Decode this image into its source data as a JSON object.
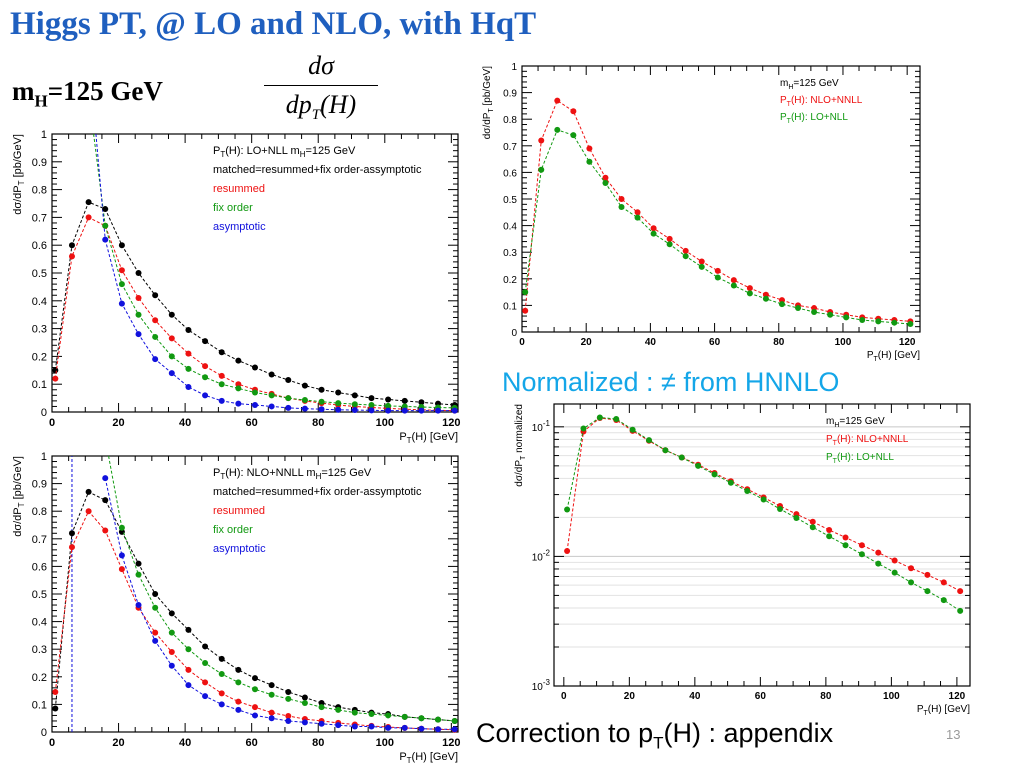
{
  "slide": {
    "title": "Higgs PT, @ LO and NLO, with HqT",
    "mass_main": "m",
    "mass_sub": "H",
    "mass_rest": "=125 GeV",
    "formula_numerator": "dσ",
    "formula_den_a": "dp",
    "formula_den_sub": "T",
    "formula_den_b": "(H)",
    "note": "Normalized : ≠ from HNNLO",
    "appendix_a": "Correction to p",
    "appendix_sub": "T",
    "appendix_b": "(H) : appendix",
    "page_number": "13"
  },
  "colors": {
    "black": "#000000",
    "red": "#ee1111",
    "green": "#119911",
    "blue": "#1111dd",
    "title": "#1f5fbf",
    "note": "#14a6e8"
  },
  "chart_data": [
    {
      "type": "scatter",
      "xlabel": "P_T(H) [GeV]",
      "ylabel": "dσ/dP_T [pb/GeV]",
      "xlim": [
        0,
        122
      ],
      "ylim": [
        0,
        1
      ],
      "xticks": [
        0,
        20,
        40,
        60,
        80,
        100,
        120
      ],
      "yticks": [
        0,
        0.1,
        0.2,
        0.3,
        0.4,
        0.5,
        0.6,
        0.7,
        0.8,
        0.9,
        1
      ],
      "legend": [
        "P_T(H): LO+NLL   m_H=125 GeV",
        "matched=resummed+fix order-assymptotic",
        "resummed",
        "fix order",
        "asymptotic"
      ],
      "legend_colors": [
        "black",
        "black",
        "red",
        "green",
        "blue"
      ],
      "legend_position": "top-right",
      "series": [
        {
          "name": "matched=resummed+fix order-assymptotic",
          "color": "black",
          "x": [
            1,
            6,
            11,
            16,
            21,
            26,
            31,
            36,
            41,
            46,
            51,
            56,
            61,
            66,
            71,
            76,
            81,
            86,
            91,
            96,
            101,
            106,
            111,
            116,
            121
          ],
          "y": [
            0.15,
            0.6,
            0.755,
            0.73,
            0.6,
            0.5,
            0.42,
            0.35,
            0.295,
            0.255,
            0.215,
            0.185,
            0.16,
            0.135,
            0.115,
            0.095,
            0.08,
            0.07,
            0.06,
            0.05,
            0.045,
            0.04,
            0.035,
            0.03,
            0.025
          ]
        },
        {
          "name": "resummed",
          "color": "red",
          "x": [
            1,
            6,
            11,
            16,
            21,
            26,
            31,
            36,
            41,
            46,
            51,
            56,
            61,
            66,
            71,
            76,
            81,
            86,
            91,
            96,
            101,
            106,
            111,
            116,
            121
          ],
          "y": [
            0.12,
            0.56,
            0.7,
            0.67,
            0.51,
            0.41,
            0.33,
            0.265,
            0.21,
            0.165,
            0.13,
            0.1,
            0.08,
            0.065,
            0.05,
            0.04,
            0.032,
            0.025,
            0.02,
            0.016,
            0.013,
            0.01,
            0.008,
            0.006,
            0.005
          ]
        },
        {
          "name": "fix order",
          "color": "green",
          "x": [
            16,
            21,
            26,
            31,
            36,
            41,
            46,
            51,
            56,
            61,
            66,
            71,
            76,
            81,
            86,
            91,
            96,
            101,
            106,
            111,
            116,
            121
          ],
          "y": [
            0.67,
            0.46,
            0.35,
            0.27,
            0.2,
            0.155,
            0.125,
            0.1,
            0.085,
            0.07,
            0.06,
            0.05,
            0.043,
            0.037,
            0.032,
            0.028,
            0.025,
            0.022,
            0.02,
            0.018,
            0.016,
            0.015
          ]
        },
        {
          "name": "asymptotic",
          "color": "blue",
          "x": [
            16,
            21,
            26,
            31,
            36,
            41,
            46,
            51,
            56,
            61,
            66,
            71,
            76,
            81,
            86,
            91,
            96,
            101,
            106,
            111,
            116,
            121
          ],
          "y": [
            0.62,
            0.39,
            0.28,
            0.19,
            0.14,
            0.09,
            0.06,
            0.04,
            0.03,
            0.025,
            0.02,
            0.015,
            0.012,
            0.01,
            0.008,
            0.007,
            0.006,
            0.005,
            0.005,
            0.005,
            0.005,
            0.005
          ]
        }
      ],
      "curves": [
        {
          "color": "green",
          "x": [
            12.5,
            16
          ],
          "y": [
            1,
            0.67
          ]
        },
        {
          "color": "blue",
          "x": [
            13.2,
            16
          ],
          "y": [
            1,
            0.62
          ]
        }
      ]
    },
    {
      "type": "scatter",
      "xlabel": "P_T(H) [GeV]",
      "ylabel": "dσ/dP_T [pb/GeV]",
      "xlim": [
        0,
        122
      ],
      "ylim": [
        0,
        1
      ],
      "xticks": [
        0,
        20,
        40,
        60,
        80,
        100,
        120
      ],
      "yticks": [
        0,
        0.1,
        0.2,
        0.3,
        0.4,
        0.5,
        0.6,
        0.7,
        0.8,
        0.9,
        1
      ],
      "legend": [
        "P_T(H): NLO+NNLL   m_H=125 GeV",
        "matched=resummed+fix order-assymptotic",
        "resummed",
        "fix order",
        "asymptotic"
      ],
      "legend_colors": [
        "black",
        "black",
        "red",
        "green",
        "blue"
      ],
      "legend_position": "top-right",
      "series": [
        {
          "name": "matched=resummed+fix order-assymptotic",
          "color": "black",
          "x": [
            1,
            6,
            11,
            16,
            21,
            26,
            31,
            36,
            41,
            46,
            51,
            56,
            61,
            66,
            71,
            76,
            81,
            86,
            91,
            96,
            101,
            106,
            111,
            116,
            121
          ],
          "y": [
            0.085,
            0.72,
            0.87,
            0.84,
            0.725,
            0.61,
            0.5,
            0.43,
            0.37,
            0.31,
            0.265,
            0.225,
            0.195,
            0.17,
            0.145,
            0.125,
            0.105,
            0.09,
            0.08,
            0.07,
            0.065,
            0.055,
            0.05,
            0.045,
            0.04
          ]
        },
        {
          "name": "resummed",
          "color": "red",
          "x": [
            1,
            6,
            11,
            16,
            21,
            26,
            31,
            36,
            41,
            46,
            51,
            56,
            61,
            66,
            71,
            76,
            81,
            86,
            91,
            96,
            101,
            106,
            111,
            116,
            121
          ],
          "y": [
            0.145,
            0.67,
            0.8,
            0.73,
            0.59,
            0.45,
            0.36,
            0.29,
            0.225,
            0.18,
            0.14,
            0.11,
            0.09,
            0.07,
            0.058,
            0.047,
            0.04,
            0.033,
            0.027,
            0.022,
            0.018,
            0.015,
            0.012,
            0.01,
            0.008
          ]
        },
        {
          "name": "fix order",
          "color": "green",
          "x": [
            21,
            26,
            31,
            36,
            41,
            46,
            51,
            56,
            61,
            66,
            71,
            76,
            81,
            86,
            91,
            96,
            101,
            106,
            111,
            116,
            121
          ],
          "y": [
            0.74,
            0.57,
            0.45,
            0.36,
            0.3,
            0.25,
            0.21,
            0.18,
            0.155,
            0.135,
            0.12,
            0.105,
            0.09,
            0.08,
            0.07,
            0.065,
            0.06,
            0.055,
            0.05,
            0.045,
            0.04
          ]
        },
        {
          "name": "asymptotic",
          "color": "blue",
          "x": [
            16,
            21,
            26,
            31,
            36,
            41,
            46,
            51,
            56,
            61,
            66,
            71,
            76,
            81,
            86,
            91,
            96,
            101,
            106,
            111,
            116,
            121
          ],
          "y": [
            0.92,
            0.64,
            0.46,
            0.33,
            0.24,
            0.17,
            0.13,
            0.1,
            0.08,
            0.06,
            0.05,
            0.04,
            0.035,
            0.03,
            0.025,
            0.02,
            0.02,
            0.015,
            0.015,
            0.012,
            0.01,
            0.01
          ]
        }
      ],
      "curves": [
        {
          "color": "green",
          "x": [
            17,
            21
          ],
          "y": [
            1,
            0.74
          ]
        },
        {
          "color": "blue",
          "x": [
            6,
            6
          ],
          "y": [
            0,
            1
          ]
        }
      ]
    },
    {
      "type": "scatter",
      "xlabel": "P_T(H) [GeV]",
      "ylabel": "dσ/dP_T [pb/GeV]",
      "xlim": [
        0,
        124
      ],
      "ylim": [
        0,
        1
      ],
      "xticks": [
        0,
        20,
        40,
        60,
        80,
        100,
        120
      ],
      "yticks": [
        0,
        0.1,
        0.2,
        0.3,
        0.4,
        0.5,
        0.6,
        0.7,
        0.8,
        0.9,
        1
      ],
      "legend": [
        "m_H=125 GeV",
        "P_T(H): NLO+NNLL",
        "P_T(H): LO+NLL"
      ],
      "legend_colors": [
        "black",
        "red",
        "green"
      ],
      "legend_position": "top-right",
      "series": [
        {
          "name": "P_T(H): NLO+NNLL",
          "color": "red",
          "x": [
            1,
            6,
            11,
            16,
            21,
            26,
            31,
            36,
            41,
            46,
            51,
            56,
            61,
            66,
            71,
            76,
            81,
            86,
            91,
            96,
            101,
            106,
            111,
            116,
            121
          ],
          "y": [
            0.08,
            0.72,
            0.87,
            0.83,
            0.69,
            0.58,
            0.5,
            0.45,
            0.39,
            0.35,
            0.305,
            0.265,
            0.23,
            0.195,
            0.165,
            0.14,
            0.12,
            0.1,
            0.09,
            0.075,
            0.065,
            0.055,
            0.05,
            0.045,
            0.04
          ]
        },
        {
          "name": "P_T(H): LO+NLL",
          "color": "green",
          "x": [
            1,
            6,
            11,
            16,
            21,
            26,
            31,
            36,
            41,
            46,
            51,
            56,
            61,
            66,
            71,
            76,
            81,
            86,
            91,
            96,
            101,
            106,
            111,
            116,
            121
          ],
          "y": [
            0.15,
            0.61,
            0.76,
            0.74,
            0.64,
            0.56,
            0.47,
            0.43,
            0.37,
            0.33,
            0.285,
            0.245,
            0.205,
            0.175,
            0.145,
            0.125,
            0.105,
            0.09,
            0.075,
            0.065,
            0.055,
            0.045,
            0.04,
            0.035,
            0.03
          ]
        }
      ]
    },
    {
      "type": "scatter",
      "xlabel": "P_T(H) [GeV]",
      "ylabel": "dσ/dP_T normalized",
      "yscale": "log",
      "xlim": [
        -3,
        124
      ],
      "ylim": [
        0.001,
        0.15
      ],
      "xticks": [
        0,
        20,
        40,
        60,
        80,
        100,
        120
      ],
      "yticks_log": [
        0.001,
        0.01,
        0.1
      ],
      "ytick_labels": [
        "10^-3",
        "10^-2",
        "10^-1"
      ],
      "legend": [
        "m_H=125 GeV",
        "P_T(H): NLO+NNLL",
        "P_T(H): LO+NLL"
      ],
      "legend_colors": [
        "black",
        "red",
        "green"
      ],
      "legend_position": "top-right",
      "series": [
        {
          "name": "P_T(H): NLO+NNLL",
          "color": "red",
          "x": [
            1,
            6,
            11,
            16,
            21,
            26,
            31,
            36,
            41,
            46,
            51,
            56,
            61,
            66,
            71,
            76,
            81,
            86,
            91,
            96,
            101,
            106,
            111,
            116,
            121
          ],
          "y": [
            0.011,
            0.092,
            0.117,
            0.113,
            0.093,
            0.078,
            0.066,
            0.058,
            0.051,
            0.044,
            0.038,
            0.033,
            0.0285,
            0.0245,
            0.0212,
            0.0185,
            0.016,
            0.014,
            0.0122,
            0.0107,
            0.0093,
            0.0081,
            0.0072,
            0.0063,
            0.0054
          ]
        },
        {
          "name": "P_T(H): LO+NLL",
          "color": "green",
          "x": [
            1,
            6,
            11,
            16,
            21,
            26,
            31,
            36,
            41,
            46,
            51,
            56,
            61,
            66,
            71,
            76,
            81,
            86,
            91,
            96,
            101,
            106,
            111,
            116,
            121
          ],
          "y": [
            0.023,
            0.097,
            0.118,
            0.115,
            0.095,
            0.079,
            0.066,
            0.058,
            0.05,
            0.043,
            0.037,
            0.032,
            0.0275,
            0.0232,
            0.0198,
            0.0168,
            0.0143,
            0.0122,
            0.0104,
            0.0088,
            0.0075,
            0.0063,
            0.0054,
            0.0046,
            0.0038
          ]
        }
      ]
    }
  ]
}
